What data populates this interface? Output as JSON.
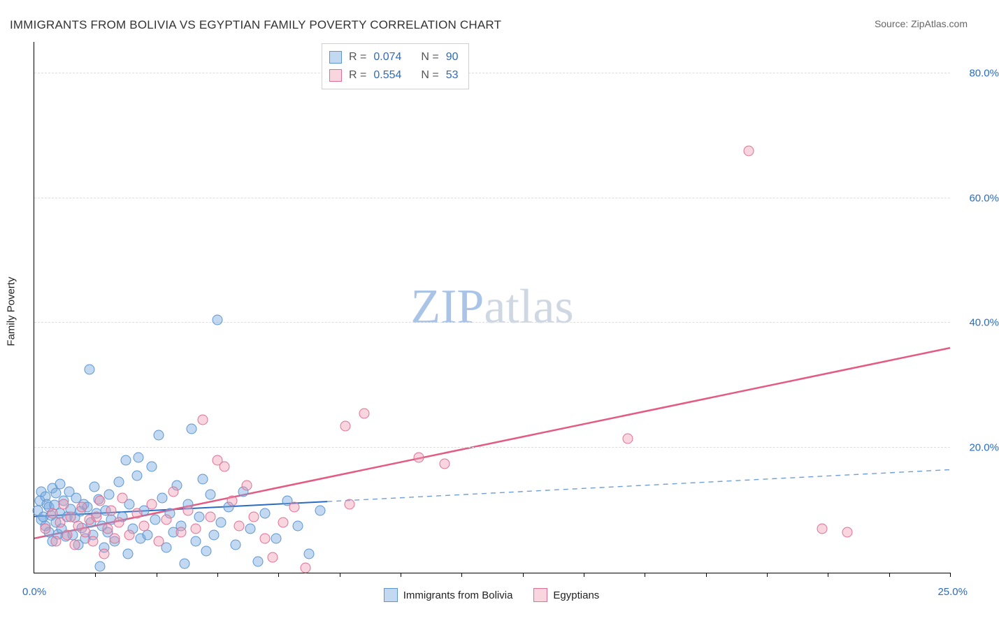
{
  "title": "IMMIGRANTS FROM BOLIVIA VS EGYPTIAN FAMILY POVERTY CORRELATION CHART",
  "source_label": "Source: ZipAtlas.com",
  "ylabel": "Family Poverty",
  "watermark": {
    "text1": "ZIP",
    "text2": "atlas",
    "color1": "#a9c4e6",
    "color2": "#cfd8e2"
  },
  "chart": {
    "type": "scatter",
    "x": {
      "min": 0.0,
      "max": 25.0,
      "label_lo": "0.0%",
      "label_hi": "25.0%",
      "tick_count": 15
    },
    "y": {
      "min": 0.0,
      "max": 85.0,
      "grid_at": [
        20,
        40,
        60,
        80
      ],
      "labels": {
        "20": "20.0%",
        "40": "40.0%",
        "60": "60.0%",
        "80": "80.0%"
      }
    },
    "grid_color": "#dddddd",
    "background_color": "#ffffff",
    "series": [
      {
        "id": "bolivia",
        "label": "Immigrants from Bolivia",
        "color_fill": "rgba(120,170,225,0.45)",
        "color_stroke": "#5e95cf",
        "marker_radius": 7.5,
        "R": "0.074",
        "N": "90",
        "trend": {
          "y0": 9.0,
          "y25": 16.5,
          "solid_until_x": 8.0,
          "solid_color": "#2a6cc2",
          "dash_color": "#6f9fd6",
          "width": 2
        },
        "points": [
          [
            0.1,
            10
          ],
          [
            0.15,
            11.5
          ],
          [
            0.2,
            8.5
          ],
          [
            0.2,
            13
          ],
          [
            0.25,
            9
          ],
          [
            0.3,
            7.5
          ],
          [
            0.3,
            12.2
          ],
          [
            0.35,
            11
          ],
          [
            0.4,
            10.5
          ],
          [
            0.4,
            6.5
          ],
          [
            0.45,
            9.2
          ],
          [
            0.5,
            13.5
          ],
          [
            0.5,
            5.0
          ],
          [
            0.55,
            10.8
          ],
          [
            0.6,
            8.0
          ],
          [
            0.6,
            12.8
          ],
          [
            0.65,
            6.2
          ],
          [
            0.7,
            9.5
          ],
          [
            0.7,
            14.2
          ],
          [
            0.75,
            7.0
          ],
          [
            0.8,
            11.5
          ],
          [
            0.85,
            5.8
          ],
          [
            0.9,
            9.0
          ],
          [
            0.95,
            13.0
          ],
          [
            1.0,
            10.2
          ],
          [
            1.05,
            6.0
          ],
          [
            1.1,
            8.8
          ],
          [
            1.15,
            12.0
          ],
          [
            1.2,
            4.5
          ],
          [
            1.25,
            9.8
          ],
          [
            1.3,
            7.2
          ],
          [
            1.35,
            11.0
          ],
          [
            1.4,
            5.5
          ],
          [
            1.45,
            10.5
          ],
          [
            1.5,
            32.5
          ],
          [
            1.55,
            8.0
          ],
          [
            1.6,
            6.0
          ],
          [
            1.65,
            13.8
          ],
          [
            1.7,
            9.5
          ],
          [
            1.75,
            11.8
          ],
          [
            1.8,
            1.0
          ],
          [
            1.85,
            7.5
          ],
          [
            1.9,
            4.0
          ],
          [
            1.95,
            10.0
          ],
          [
            2.0,
            6.5
          ],
          [
            2.05,
            12.5
          ],
          [
            2.1,
            8.5
          ],
          [
            2.2,
            5.0
          ],
          [
            2.3,
            14.5
          ],
          [
            2.4,
            9.0
          ],
          [
            2.5,
            18.0
          ],
          [
            2.55,
            3.0
          ],
          [
            2.6,
            11.0
          ],
          [
            2.7,
            7.0
          ],
          [
            2.8,
            15.5
          ],
          [
            2.85,
            18.5
          ],
          [
            2.9,
            5.5
          ],
          [
            3.0,
            10.0
          ],
          [
            3.1,
            6.0
          ],
          [
            3.2,
            17.0
          ],
          [
            3.3,
            8.5
          ],
          [
            3.4,
            22.0
          ],
          [
            3.5,
            12.0
          ],
          [
            3.6,
            4.0
          ],
          [
            3.7,
            9.5
          ],
          [
            3.8,
            6.5
          ],
          [
            3.9,
            14.0
          ],
          [
            4.0,
            7.5
          ],
          [
            4.1,
            1.5
          ],
          [
            4.2,
            11.0
          ],
          [
            4.3,
            23.0
          ],
          [
            4.4,
            5.0
          ],
          [
            4.5,
            9.0
          ],
          [
            4.6,
            15.0
          ],
          [
            4.7,
            3.5
          ],
          [
            4.8,
            12.5
          ],
          [
            4.9,
            6.0
          ],
          [
            5.0,
            40.5
          ],
          [
            5.1,
            8.0
          ],
          [
            5.3,
            10.5
          ],
          [
            5.5,
            4.5
          ],
          [
            5.7,
            13.0
          ],
          [
            5.9,
            7.0
          ],
          [
            6.1,
            1.8
          ],
          [
            6.3,
            9.5
          ],
          [
            6.6,
            5.5
          ],
          [
            6.9,
            11.5
          ],
          [
            7.2,
            7.5
          ],
          [
            7.5,
            3.0
          ],
          [
            7.8,
            10.0
          ]
        ]
      },
      {
        "id": "egypt",
        "label": "Egyptians",
        "color_fill": "rgba(240,150,175,0.40)",
        "color_stroke": "#e06f94",
        "marker_radius": 7.5,
        "R": "0.554",
        "N": "53",
        "trend": {
          "y0": 5.5,
          "y25": 36.0,
          "solid_until_x": 25.0,
          "solid_color": "#e35b82",
          "dash_color": "#e35b82",
          "width": 2.5
        },
        "points": [
          [
            0.3,
            7.0
          ],
          [
            0.5,
            9.5
          ],
          [
            0.6,
            5.0
          ],
          [
            0.7,
            8.0
          ],
          [
            0.8,
            11.0
          ],
          [
            0.9,
            6.0
          ],
          [
            1.0,
            9.0
          ],
          [
            1.1,
            4.5
          ],
          [
            1.2,
            7.5
          ],
          [
            1.3,
            10.5
          ],
          [
            1.4,
            6.5
          ],
          [
            1.5,
            8.5
          ],
          [
            1.6,
            5.0
          ],
          [
            1.7,
            9.0
          ],
          [
            1.8,
            11.5
          ],
          [
            1.9,
            3.0
          ],
          [
            2.0,
            7.0
          ],
          [
            2.1,
            10.0
          ],
          [
            2.2,
            5.5
          ],
          [
            2.3,
            8.0
          ],
          [
            2.4,
            12.0
          ],
          [
            2.6,
            6.0
          ],
          [
            2.8,
            9.5
          ],
          [
            3.0,
            7.5
          ],
          [
            3.2,
            11.0
          ],
          [
            3.4,
            5.0
          ],
          [
            3.6,
            8.5
          ],
          [
            3.8,
            13.0
          ],
          [
            4.0,
            6.5
          ],
          [
            4.2,
            10.0
          ],
          [
            4.4,
            7.0
          ],
          [
            4.6,
            24.5
          ],
          [
            4.8,
            9.0
          ],
          [
            5.0,
            18.0
          ],
          [
            5.2,
            17.0
          ],
          [
            5.4,
            11.5
          ],
          [
            5.6,
            7.5
          ],
          [
            5.8,
            14.0
          ],
          [
            6.0,
            9.0
          ],
          [
            6.3,
            5.5
          ],
          [
            6.5,
            2.5
          ],
          [
            6.8,
            8.0
          ],
          [
            7.1,
            10.5
          ],
          [
            7.4,
            0.8
          ],
          [
            8.5,
            23.5
          ],
          [
            8.6,
            11.0
          ],
          [
            9.0,
            25.5
          ],
          [
            10.5,
            18.5
          ],
          [
            11.2,
            17.5
          ],
          [
            16.2,
            21.5
          ],
          [
            19.5,
            67.5
          ],
          [
            22.2,
            6.5
          ],
          [
            21.5,
            7.0
          ]
        ]
      }
    ],
    "legend_top": {
      "layout": [
        {
          "swatch": "bolivia",
          "r_label": "R =",
          "r_val": "0.074",
          "n_label": "N =",
          "n_val": "90"
        },
        {
          "swatch": "egypt",
          "r_label": "R =",
          "r_val": "0.554",
          "n_label": "N =",
          "n_val": "53"
        }
      ]
    },
    "colors": {
      "stat_label": "#555555",
      "stat_value": "#2a6cc2"
    }
  }
}
